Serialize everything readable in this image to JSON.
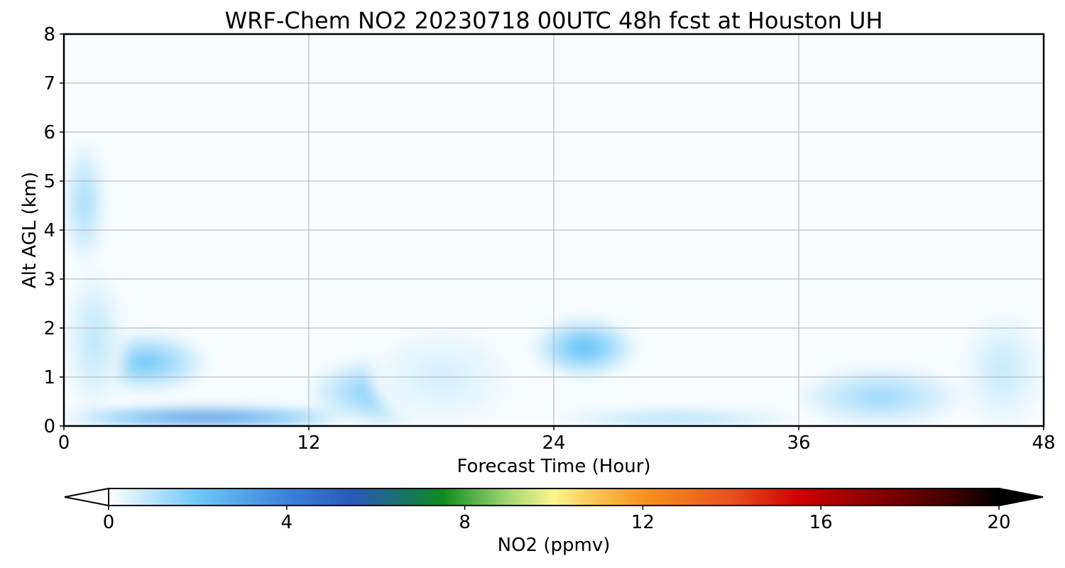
{
  "chart_data": {
    "type": "heatmap",
    "plot_style": "filled-contour time-height cross section",
    "title": "WRF-Chem NO2  20230718 00UTC 48h fcst at Houston UH",
    "xlabel": "Forecast Time (Hour)",
    "ylabel": "Alt AGL (km)",
    "xlim": [
      0,
      48
    ],
    "ylim": [
      0,
      8
    ],
    "xticks": [
      "0",
      "12",
      "24",
      "36",
      "48"
    ],
    "yticks": [
      "0",
      "1",
      "2",
      "3",
      "4",
      "5",
      "6",
      "7",
      "8"
    ],
    "grid": true,
    "colorbar": {
      "label": "NO2  (ppmv)",
      "range": [
        0,
        20
      ],
      "ticks": [
        "0",
        "4",
        "8",
        "12",
        "16",
        "20"
      ],
      "extend": "both",
      "orientation": "horizontal",
      "placement": "bottom",
      "color_stops": [
        {
          "value": 0,
          "color": "#ffffff"
        },
        {
          "value": 2,
          "color": "#6ec8f8"
        },
        {
          "value": 4,
          "color": "#3c82dc"
        },
        {
          "value": 5.5,
          "color": "#2858b8"
        },
        {
          "value": 6.5,
          "color": "#1a7070"
        },
        {
          "value": 7.5,
          "color": "#0e8c1e"
        },
        {
          "value": 9,
          "color": "#a6d873"
        },
        {
          "value": 10,
          "color": "#fdf58c"
        },
        {
          "value": 11,
          "color": "#fcc050"
        },
        {
          "value": 12,
          "color": "#f7941e"
        },
        {
          "value": 14,
          "color": "#e8501e"
        },
        {
          "value": 15.5,
          "color": "#d00000"
        },
        {
          "value": 17,
          "color": "#900000"
        },
        {
          "value": 19,
          "color": "#3c0000"
        },
        {
          "value": 20,
          "color": "#000000"
        }
      ]
    },
    "background_value": 0.1,
    "features": [
      {
        "hour_start": 0,
        "hour_end": 2,
        "alt_start": 3.3,
        "alt_end": 5.8,
        "peak": 1.3
      },
      {
        "hour_start": 1,
        "hour_end": 7,
        "alt_start": 0.7,
        "alt_end": 1.9,
        "peak": 2.0
      },
      {
        "hour_start": 0,
        "hour_end": 3,
        "alt_start": 0.3,
        "alt_end": 3.2,
        "peak": 0.9
      },
      {
        "hour_start": 0,
        "hour_end": 14,
        "alt_start": 0,
        "alt_end": 0.35,
        "peak": 4.8
      },
      {
        "hour_start": 12,
        "hour_end": 20,
        "alt_start": 0,
        "alt_end": 1.4,
        "peak": 2.0
      },
      {
        "hour_start": 15,
        "hour_end": 22,
        "alt_start": 0,
        "alt_end": 2.0,
        "peak": 0.6
      },
      {
        "hour_start": 23,
        "hour_end": 28,
        "alt_start": 1.0,
        "alt_end": 2.2,
        "peak": 2.3
      },
      {
        "hour_start": 24,
        "hour_end": 36,
        "alt_start": 0,
        "alt_end": 0.3,
        "peak": 1.6
      },
      {
        "hour_start": 36,
        "hour_end": 44,
        "alt_start": 0,
        "alt_end": 1.2,
        "peak": 1.4
      },
      {
        "hour_start": 44,
        "hour_end": 48,
        "alt_start": 0,
        "alt_end": 2.3,
        "peak": 0.8
      }
    ]
  }
}
